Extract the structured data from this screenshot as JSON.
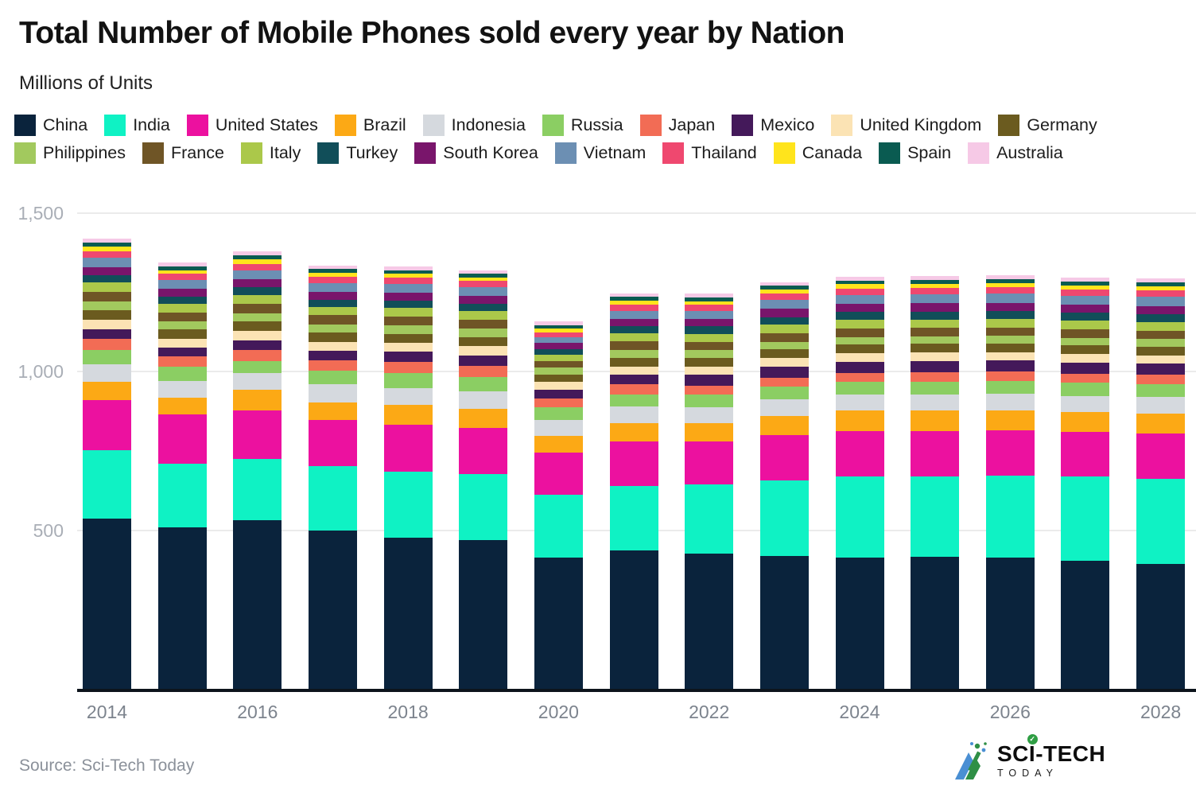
{
  "title": "Total Number of Mobile Phones sold every year by Nation",
  "subtitle": "Millions of Units",
  "source": "Source: Sci-Tech Today",
  "logo": {
    "text_primary_left": "SC",
    "text_primary_i": "I",
    "text_primary_right": "-TECH",
    "check_glyph": "✓",
    "text_secondary": "TODAY"
  },
  "chart_data": {
    "type": "bar",
    "stacked": true,
    "grid": "horizontal",
    "legend_position": "top",
    "ylim": [
      0,
      1500
    ],
    "y_ticks": [
      {
        "value": 500,
        "label": "500"
      },
      {
        "value": 1000,
        "label": "1,000"
      },
      {
        "value": 1500,
        "label": "1,500"
      }
    ],
    "categories": [
      "2014",
      "2015",
      "2016",
      "2017",
      "2018",
      "2019",
      "2020",
      "2021",
      "2022",
      "2023",
      "2024",
      "2025",
      "2026",
      "2027",
      "2028"
    ],
    "x_tick_labels": [
      "2014",
      "2016",
      "2018",
      "2020",
      "2022",
      "2024",
      "2026",
      "2028"
    ],
    "x_tick_step": 2,
    "series": [
      {
        "name": "China",
        "color": "#0a233c",
        "values": [
          537,
          508,
          532,
          498,
          476,
          468,
          415,
          437,
          427,
          418,
          415,
          416,
          413,
          405,
          395
        ]
      },
      {
        "name": "India",
        "color": "#0ff2c4",
        "values": [
          215,
          201,
          192,
          205,
          208,
          210,
          196,
          202,
          218,
          240,
          256,
          253,
          260,
          265,
          268
        ]
      },
      {
        "name": "United States",
        "color": "#ec119f",
        "values": [
          159,
          156,
          154,
          144,
          149,
          146,
          134,
          140,
          136,
          141,
          142,
          144,
          142,
          139,
          142
        ]
      },
      {
        "name": "Brazil",
        "color": "#fca915",
        "values": [
          58,
          53,
          64,
          57,
          62,
          58,
          52,
          58,
          58,
          62,
          64,
          64,
          64,
          64,
          64
        ]
      },
      {
        "name": "Indonesia",
        "color": "#d5d9de",
        "values": [
          55,
          54,
          54,
          58,
          54,
          56,
          52,
          54,
          50,
          52,
          50,
          51,
          51,
          51,
          51
        ]
      },
      {
        "name": "Russia",
        "color": "#8bce63",
        "values": [
          45,
          43,
          38,
          41,
          46,
          45,
          40,
          36,
          38,
          40,
          41,
          41,
          41,
          41,
          41
        ]
      },
      {
        "name": "Japan",
        "color": "#f26c55",
        "values": [
          34,
          33,
          35,
          32,
          35,
          35,
          27,
          33,
          30,
          29,
          29,
          29,
          29,
          29,
          29
        ]
      },
      {
        "name": "Mexico",
        "color": "#44195a",
        "values": [
          31,
          29,
          31,
          31,
          33,
          34,
          28,
          30,
          33,
          34,
          35,
          35,
          35,
          35,
          35
        ]
      },
      {
        "name": "United Kingdom",
        "color": "#fbe3b4",
        "values": [
          29,
          27,
          28,
          28,
          28,
          29,
          25,
          27,
          27,
          27,
          27,
          27,
          27,
          27,
          27
        ]
      },
      {
        "name": "Germany",
        "color": "#6b5b1f",
        "values": [
          31,
          29,
          30,
          29,
          29,
          29,
          22,
          27,
          27,
          28,
          28,
          28,
          28,
          28,
          28
        ]
      },
      {
        "name": "Philippines",
        "color": "#a2c95e",
        "values": [
          28,
          26,
          27,
          27,
          27,
          27,
          23,
          26,
          25,
          23,
          23,
          23,
          23,
          23,
          23
        ]
      },
      {
        "name": "France",
        "color": "#6f5526",
        "values": [
          30,
          28,
          29,
          28,
          28,
          28,
          21,
          26,
          26,
          27,
          27,
          27,
          27,
          27,
          27
        ]
      },
      {
        "name": "Italy",
        "color": "#abc84a",
        "values": [
          29,
          27,
          28,
          27,
          27,
          27,
          18,
          25,
          25,
          27,
          27,
          27,
          27,
          27,
          27
        ]
      },
      {
        "name": "Turkey",
        "color": "#114e59",
        "values": [
          24,
          23,
          24,
          23,
          23,
          23,
          19,
          24,
          23,
          25,
          25,
          25,
          25,
          25,
          25
        ]
      },
      {
        "name": "South Korea",
        "color": "#79156b",
        "values": [
          26,
          25,
          26,
          25,
          25,
          24,
          19,
          22,
          23,
          26,
          26,
          26,
          26,
          26,
          26
        ]
      },
      {
        "name": "Vietnam",
        "color": "#6c8fb3",
        "values": [
          29,
          27,
          28,
          27,
          27,
          27,
          17,
          26,
          26,
          28,
          28,
          28,
          28,
          28,
          28
        ]
      },
      {
        "name": "Thailand",
        "color": "#ef486f",
        "values": [
          21,
          20,
          21,
          20,
          20,
          20,
          17,
          19,
          19,
          20,
          20,
          20,
          20,
          20,
          20
        ]
      },
      {
        "name": "Canada",
        "color": "#ffe41c",
        "values": [
          13,
          12,
          13,
          12,
          12,
          12,
          12,
          12,
          12,
          12,
          13,
          13,
          13,
          13,
          13
        ]
      },
      {
        "name": "Spain",
        "color": "#0a5b51",
        "values": [
          13,
          12,
          13,
          12,
          12,
          12,
          11,
          12,
          12,
          12,
          12,
          12,
          12,
          12,
          12
        ]
      },
      {
        "name": "Australia",
        "color": "#f6c9e6",
        "values": [
          12,
          11,
          12,
          11,
          11,
          11,
          12,
          11,
          11,
          12,
          13,
          13,
          13,
          13,
          13
        ]
      }
    ]
  }
}
